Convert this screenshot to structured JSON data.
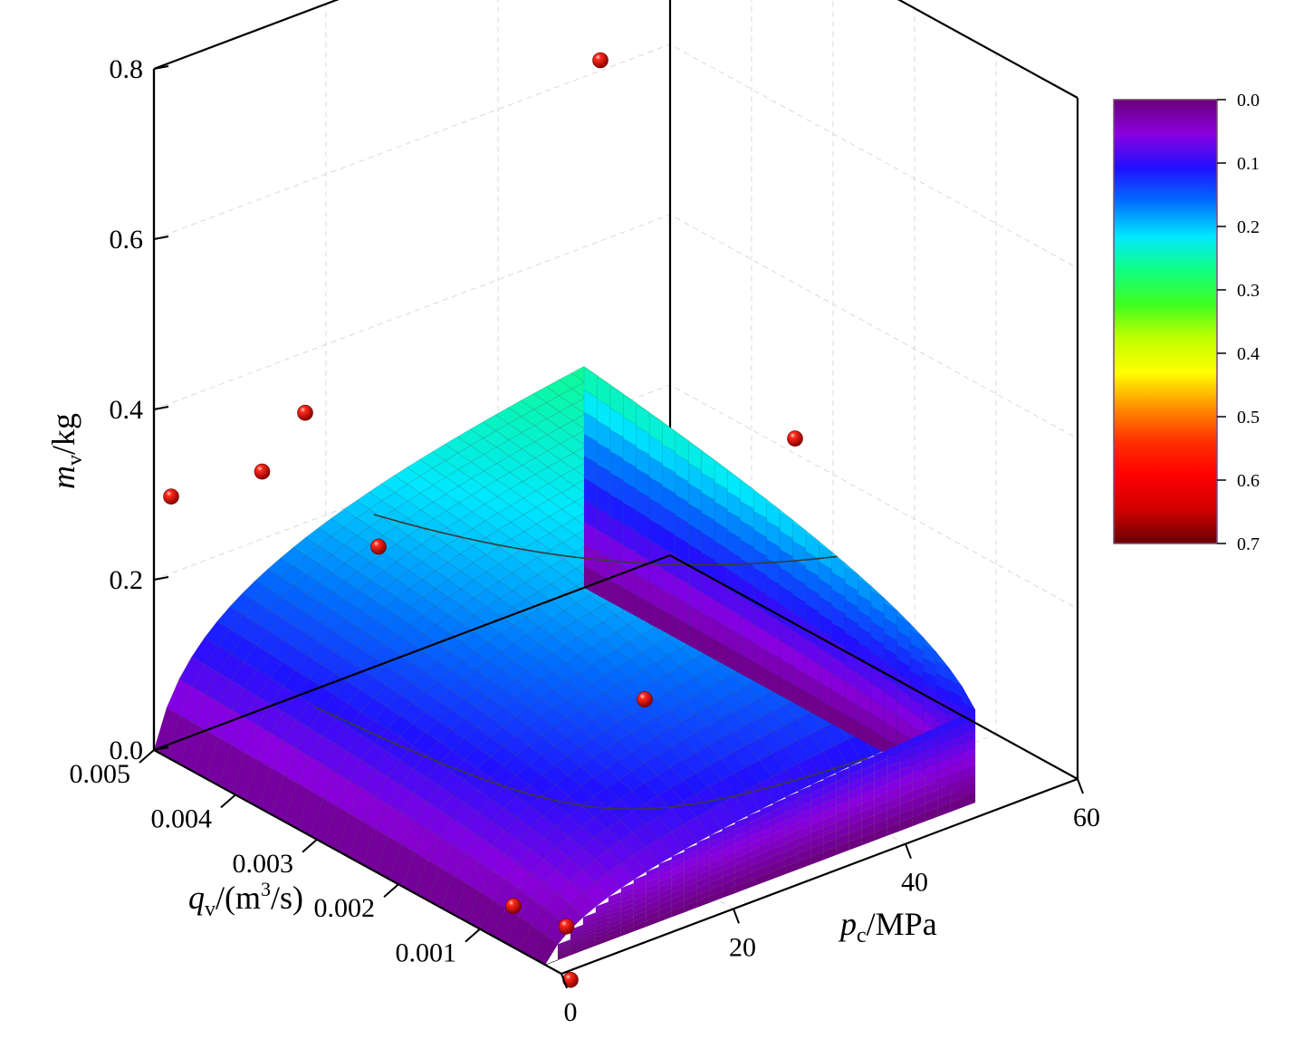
{
  "chart_data": {
    "type": "surface3d",
    "x_axis": {
      "label_main": "p",
      "label_sub": "c",
      "label_rest": "/MPa",
      "range": [
        0,
        60
      ],
      "ticks": [
        "0",
        "20",
        "40",
        "60"
      ]
    },
    "y_axis": {
      "label_main": "q",
      "label_sub": "v",
      "label_mid": "/(m",
      "label_sup": "3",
      "label_rest": "/s)",
      "range": [
        0,
        0.005
      ],
      "ticks": [
        "0.001",
        "0.002",
        "0.003",
        "0.004",
        "0.005"
      ]
    },
    "z_axis": {
      "label_main": "m",
      "label_sub": "v",
      "label_rest": "/kg",
      "range": [
        0,
        0.8
      ],
      "ticks": [
        "0.0",
        "0.2",
        "0.4",
        "0.6",
        "0.8"
      ]
    },
    "colorbar": {
      "ticks": [
        "0.0",
        "0.1",
        "0.2",
        "0.3",
        "0.4",
        "0.5",
        "0.6",
        "0.7"
      ],
      "range": [
        0,
        0.7
      ],
      "colors": [
        "#6a0078",
        "#8a00e0",
        "#2010ff",
        "#0070ff",
        "#00e8ff",
        "#10ff80",
        "#40ff20",
        "#c0ff00",
        "#ffff00",
        "#ff9000",
        "#ff3000",
        "#ff0000",
        "#d00000",
        "#6a0000"
      ]
    },
    "surface": {
      "model": "m = 0.26*(q/0.005)^0.27 * log(1+p/2)/log(26)",
      "p_range": [
        0,
        50
      ],
      "q_range": [
        0.0002,
        0.005
      ],
      "contours": [
        0.1,
        0.2,
        0.3,
        0.4,
        0.5
      ]
    },
    "points": [
      {
        "p": 2,
        "q": 0.005,
        "m": 0.29
      },
      {
        "p": 5,
        "q": 0.0042,
        "m": 0.35
      },
      {
        "p": 10,
        "q": 0.0042,
        "m": 0.4
      },
      {
        "p": 10,
        "q": 0.0033,
        "m": 0.29
      },
      {
        "p": 50,
        "q": 0.0048,
        "m": 0.63
      },
      {
        "p": 22,
        "q": 0.0013,
        "m": 0.17
      },
      {
        "p": 48,
        "q": 0.0022,
        "m": 0.33
      },
      {
        "p": 2,
        "q": 0.0008,
        "m": 0.03
      },
      {
        "p": 2,
        "q": 0.00015,
        "m": 0.04
      },
      {
        "p": 2,
        "q": 0.0001,
        "m": -0.02
      }
    ],
    "grid": true
  }
}
